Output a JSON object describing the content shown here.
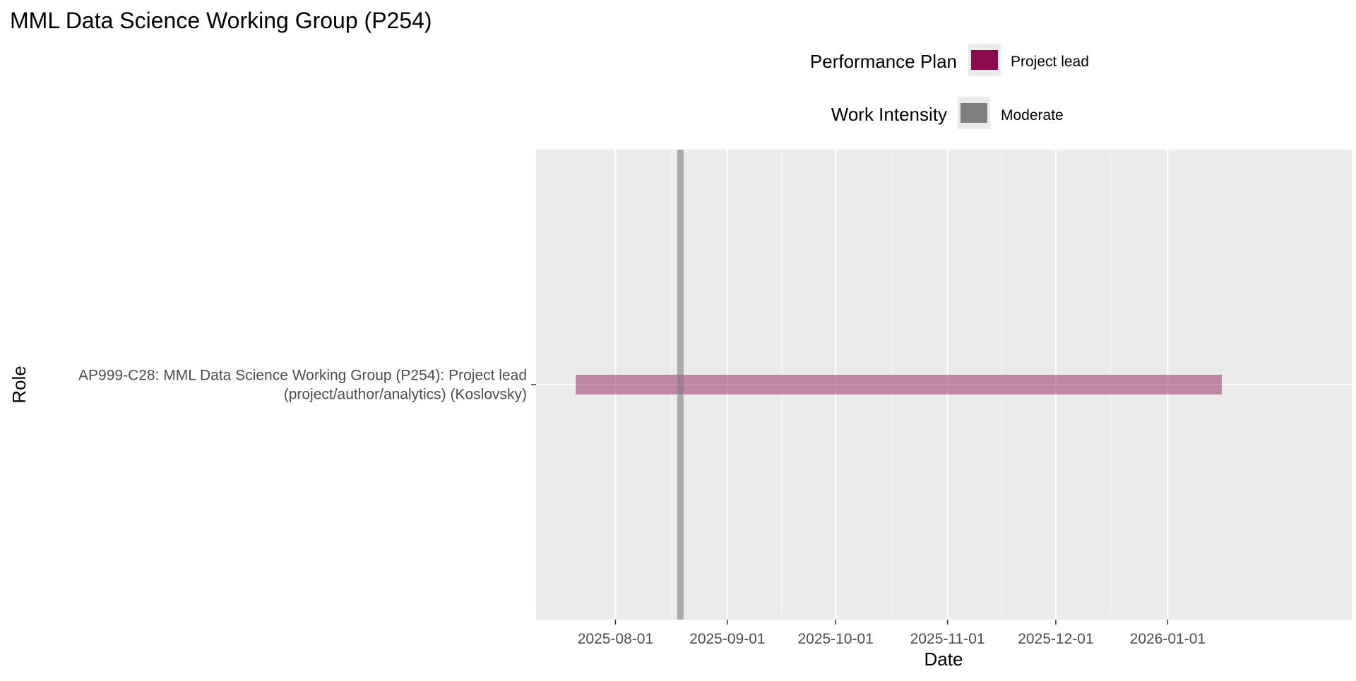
{
  "chart_data": {
    "type": "gantt",
    "title": "MML Data Science Working Group (P254)",
    "xlabel": "Date",
    "ylabel": "Role",
    "x_type": "date",
    "xlim": [
      "2025-07-10",
      "2026-02-21"
    ],
    "x_ticks": [
      "2025-08-01",
      "2025-09-01",
      "2025-10-01",
      "2025-11-01",
      "2025-12-01",
      "2026-01-01"
    ],
    "grid": true,
    "legend_position": "top",
    "legends": [
      {
        "title": "Performance Plan",
        "entries": [
          {
            "label": "Project lead",
            "color": "#8b0a50"
          }
        ]
      },
      {
        "title": "Work Intensity",
        "entries": [
          {
            "label": "Moderate",
            "color": "#7f7f7f"
          }
        ]
      }
    ],
    "categories": [
      "AP999-C28: MML Data Science Working Group (P254): Project lead\n(project/author/analytics) (Koslovsky)"
    ],
    "bars": [
      {
        "category": "AP999-C28: MML Data Science Working Group (P254): Project lead\n(project/author/analytics) (Koslovsky)",
        "start": "2025-07-21",
        "end": "2026-01-16",
        "performance_plan": "Project lead",
        "color": "#8b0a50",
        "opacity": 0.45
      }
    ],
    "vlines": [
      {
        "date": "2025-08-19",
        "work_intensity": "Moderate",
        "color": "#7f7f7f",
        "opacity": 0.6
      }
    ]
  }
}
